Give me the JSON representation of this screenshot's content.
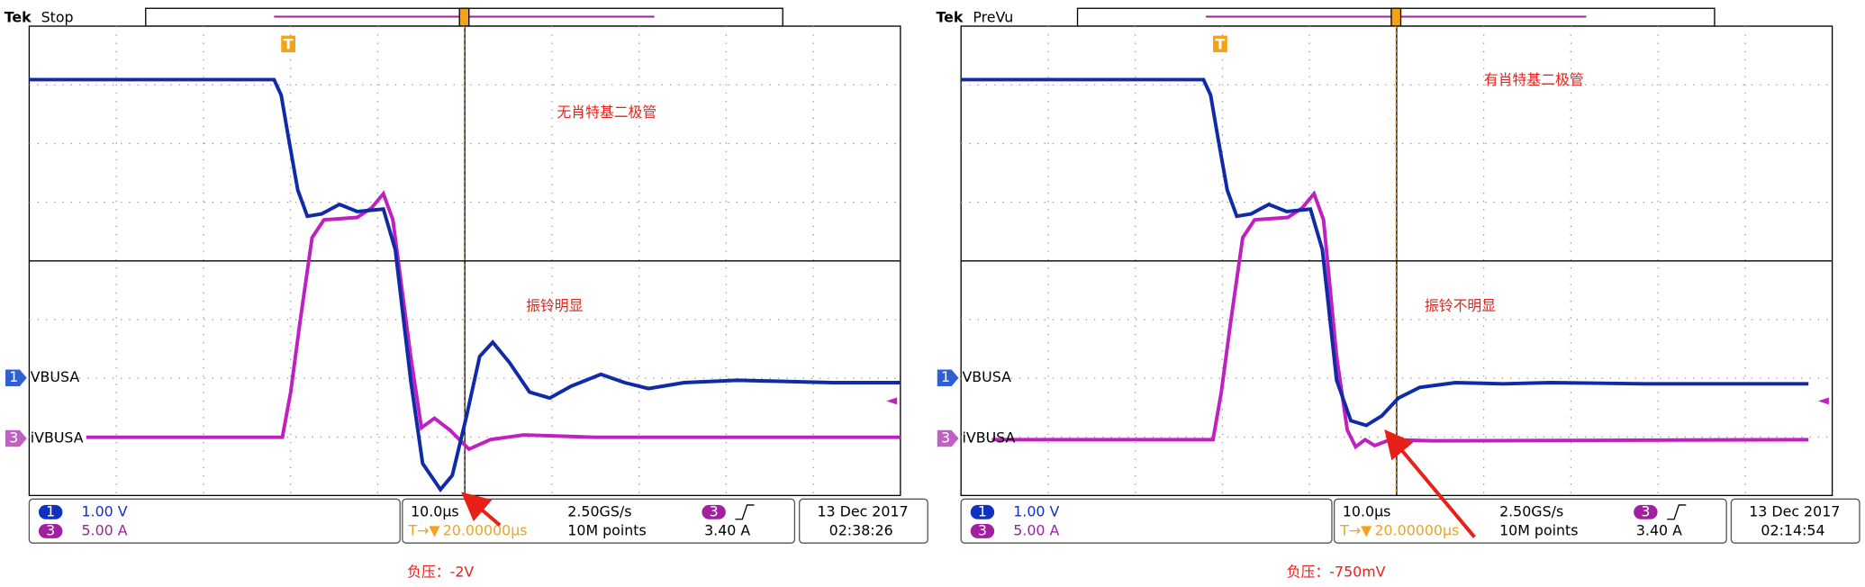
{
  "panels": [
    {
      "brand": "Tek",
      "status": "Stop",
      "annotation_title": "无肖特基二极管",
      "annotation_ringing": "振铃明显",
      "trigger_marker": "T",
      "ch1_number": "1",
      "ch3_number": "3",
      "ch1_label": "VBUSA",
      "ch3_label": "iVBUSA",
      "ch1_scale": "1.00 V",
      "ch3_scale": "5.00 A",
      "timebase": "10.0μs",
      "trigger_position": "20.00000μs",
      "sample_rate": "2.50GS/s",
      "record_length": "10M points",
      "trigger_level": "3.40 A",
      "date": "13 Dec 2017",
      "time": "02:38:26",
      "caption": "负压：-2V"
    },
    {
      "brand": "Tek",
      "status": "PreVu",
      "annotation_title": "有肖特基二极管",
      "annotation_ringing": "振铃不明显",
      "trigger_marker": "T",
      "ch1_number": "1",
      "ch3_number": "3",
      "ch1_label": "VBUSA",
      "ch3_label": "iVBUSA",
      "ch1_scale": "1.00 V",
      "ch3_scale": "5.00 A",
      "timebase": "10.0μs",
      "trigger_position": "20.00000μs",
      "sample_rate": "2.50GS/s",
      "record_length": "10M points",
      "trigger_level": "3.40 A",
      "date": "13 Dec 2017",
      "time": "02:14:54",
      "caption": "负压：-750mV"
    }
  ]
}
